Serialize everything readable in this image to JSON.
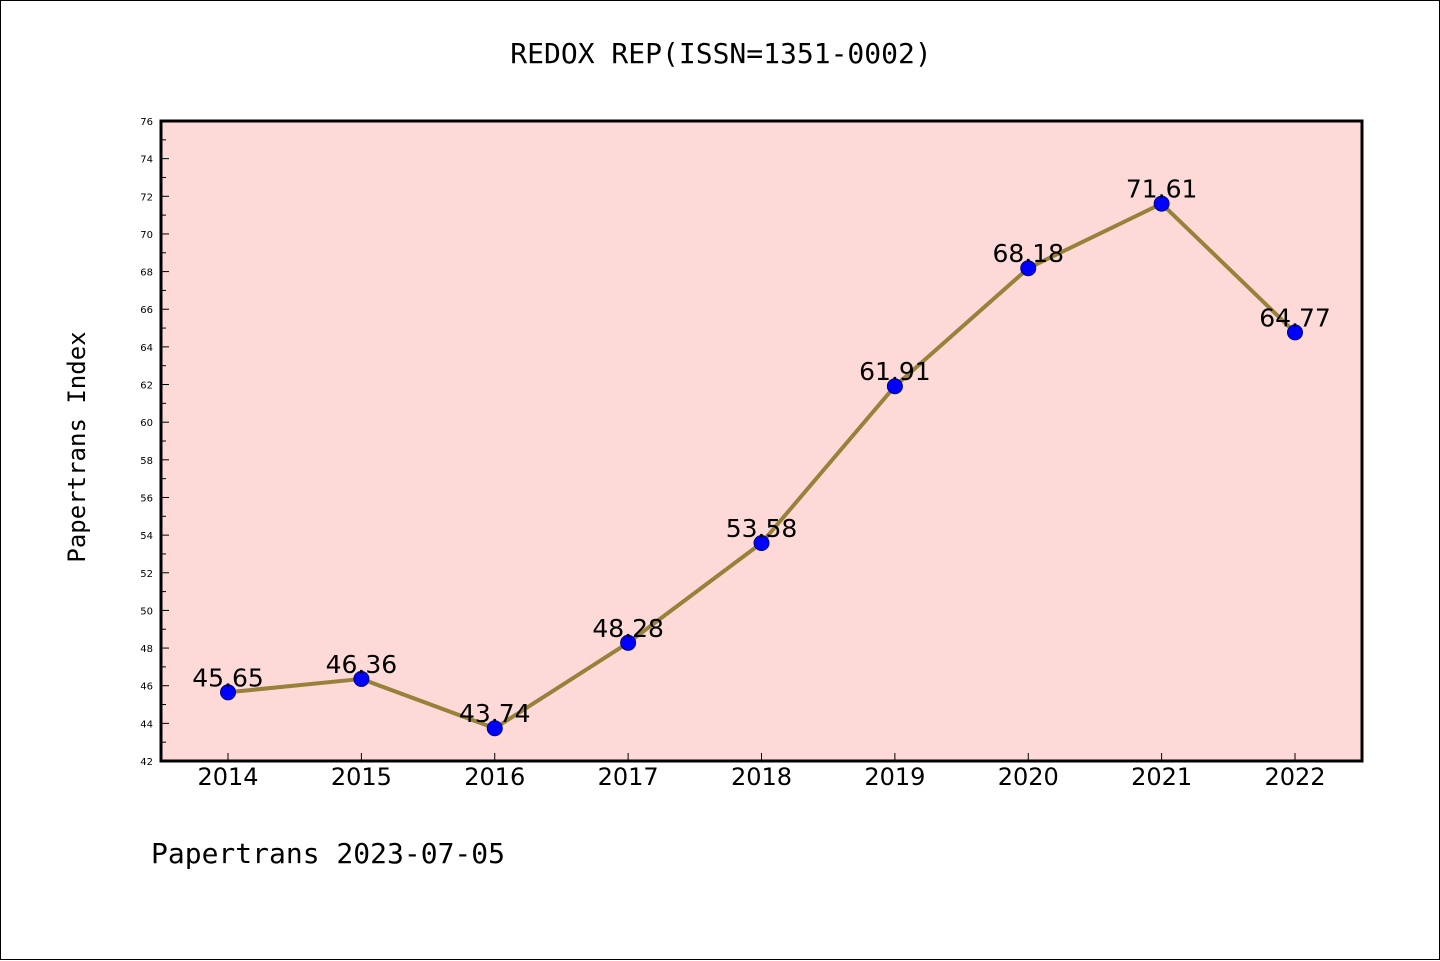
{
  "chart_data": {
    "type": "line",
    "title": "REDOX REP(ISSN=1351-0002)",
    "ylabel": "Papertrans Index",
    "xlabel": "",
    "categories": [
      "2014",
      "2015",
      "2016",
      "2017",
      "2018",
      "2019",
      "2020",
      "2021",
      "2022"
    ],
    "values": [
      45.65,
      46.36,
      43.74,
      48.28,
      53.58,
      61.91,
      68.18,
      71.61,
      64.77
    ],
    "data_labels": [
      "45.65",
      "46.36",
      "43.74",
      "48.28",
      "53.58",
      "61.91",
      "68.18",
      "71.61",
      "64.77"
    ],
    "ylim": [
      42,
      76
    ],
    "y_ticks": [
      "42",
      "44",
      "46",
      "48",
      "50",
      "52",
      "54",
      "56",
      "58",
      "60",
      "62",
      "64",
      "66",
      "68",
      "70",
      "72",
      "74",
      "76"
    ],
    "grid": false,
    "legend": "none",
    "colors": {
      "plot_background": "#fddad8",
      "line": "#98813a",
      "marker": "#0000ff",
      "axis": "#000000"
    }
  },
  "footer": "Papertrans 2023-07-05"
}
